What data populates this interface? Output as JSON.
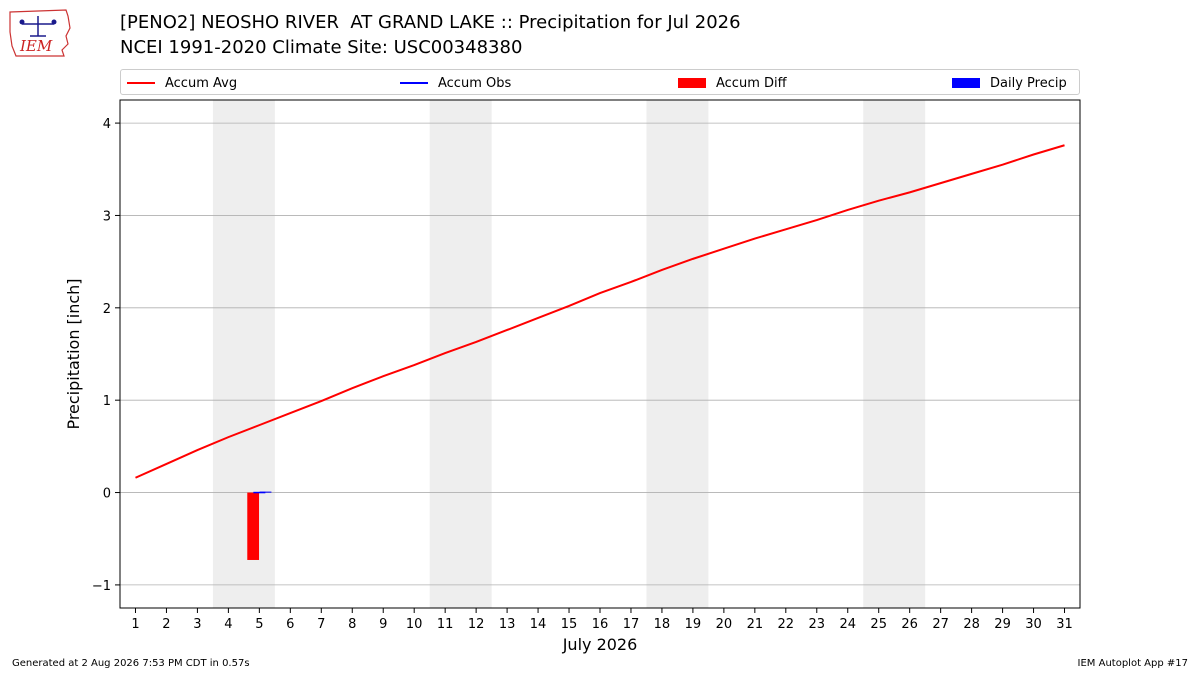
{
  "header": {
    "title_line1": "[PENO2] NEOSHO RIVER  AT GRAND LAKE :: Precipitation for Jul 2026",
    "title_line2": "NCEI 1991-2020 Climate Site: USC00348380",
    "logo_text": "IEM"
  },
  "footer": {
    "left": "Generated at 2 Aug 2026 7:53 PM CDT in 0.57s",
    "right": "IEM Autoplot App #17"
  },
  "colors": {
    "accum_avg": "#ff0000",
    "accum_obs": "#0000ff",
    "accum_diff": "#ff0000",
    "daily_precip": "#0000ff",
    "weekend_band": "#eeeeee",
    "grid": "#b0b0b0"
  },
  "chart_data": {
    "type": "line",
    "xlabel": "July 2026",
    "ylabel": "Precipitation [inch]",
    "xlim": [
      0.5,
      31.5
    ],
    "ylim": [
      -1.25,
      4.25
    ],
    "grid": "horizontal",
    "legend_placement": "top",
    "x_ticks": [
      1,
      2,
      3,
      4,
      5,
      6,
      7,
      8,
      9,
      10,
      11,
      12,
      13,
      14,
      15,
      16,
      17,
      18,
      19,
      20,
      21,
      22,
      23,
      24,
      25,
      26,
      27,
      28,
      29,
      30,
      31
    ],
    "x_tick_labels": [
      "1",
      "2",
      "3",
      "4",
      "5",
      "6",
      "7",
      "8",
      "9",
      "10",
      "11",
      "12",
      "13",
      "14",
      "15",
      "16",
      "17",
      "18",
      "19",
      "20",
      "21",
      "22",
      "23",
      "24",
      "25",
      "26",
      "27",
      "28",
      "29",
      "30",
      "31"
    ],
    "y_ticks": [
      -1,
      0,
      1,
      2,
      3,
      4
    ],
    "y_tick_labels": [
      "−1",
      "0",
      "1",
      "2",
      "3",
      "4"
    ],
    "weekend_bands": [
      [
        3.5,
        5.5
      ],
      [
        10.5,
        12.5
      ],
      [
        17.5,
        19.5
      ],
      [
        24.5,
        26.5
      ]
    ],
    "series": [
      {
        "name": "Accum Avg",
        "kind": "line",
        "x": [
          1,
          2,
          3,
          4,
          5,
          6,
          7,
          8,
          9,
          10,
          11,
          12,
          13,
          14,
          15,
          16,
          17,
          18,
          19,
          20,
          21,
          22,
          23,
          24,
          25,
          26,
          27,
          28,
          29,
          30,
          31
        ],
        "values": [
          0.16,
          0.31,
          0.46,
          0.6,
          0.73,
          0.86,
          0.99,
          1.13,
          1.26,
          1.38,
          1.51,
          1.63,
          1.76,
          1.89,
          2.02,
          2.16,
          2.28,
          2.41,
          2.53,
          2.64,
          2.75,
          2.85,
          2.95,
          3.06,
          3.16,
          3.25,
          3.35,
          3.45,
          3.55,
          3.66,
          3.76
        ]
      },
      {
        "name": "Accum Obs",
        "kind": "line",
        "x": [
          5
        ],
        "values": [
          0.0
        ]
      },
      {
        "name": "Accum Diff",
        "kind": "bar",
        "x": [
          4.8
        ],
        "values": [
          -0.73
        ]
      },
      {
        "name": "Daily Precip",
        "kind": "bar",
        "x": [
          5.2
        ],
        "values": [
          0.01
        ]
      }
    ]
  }
}
